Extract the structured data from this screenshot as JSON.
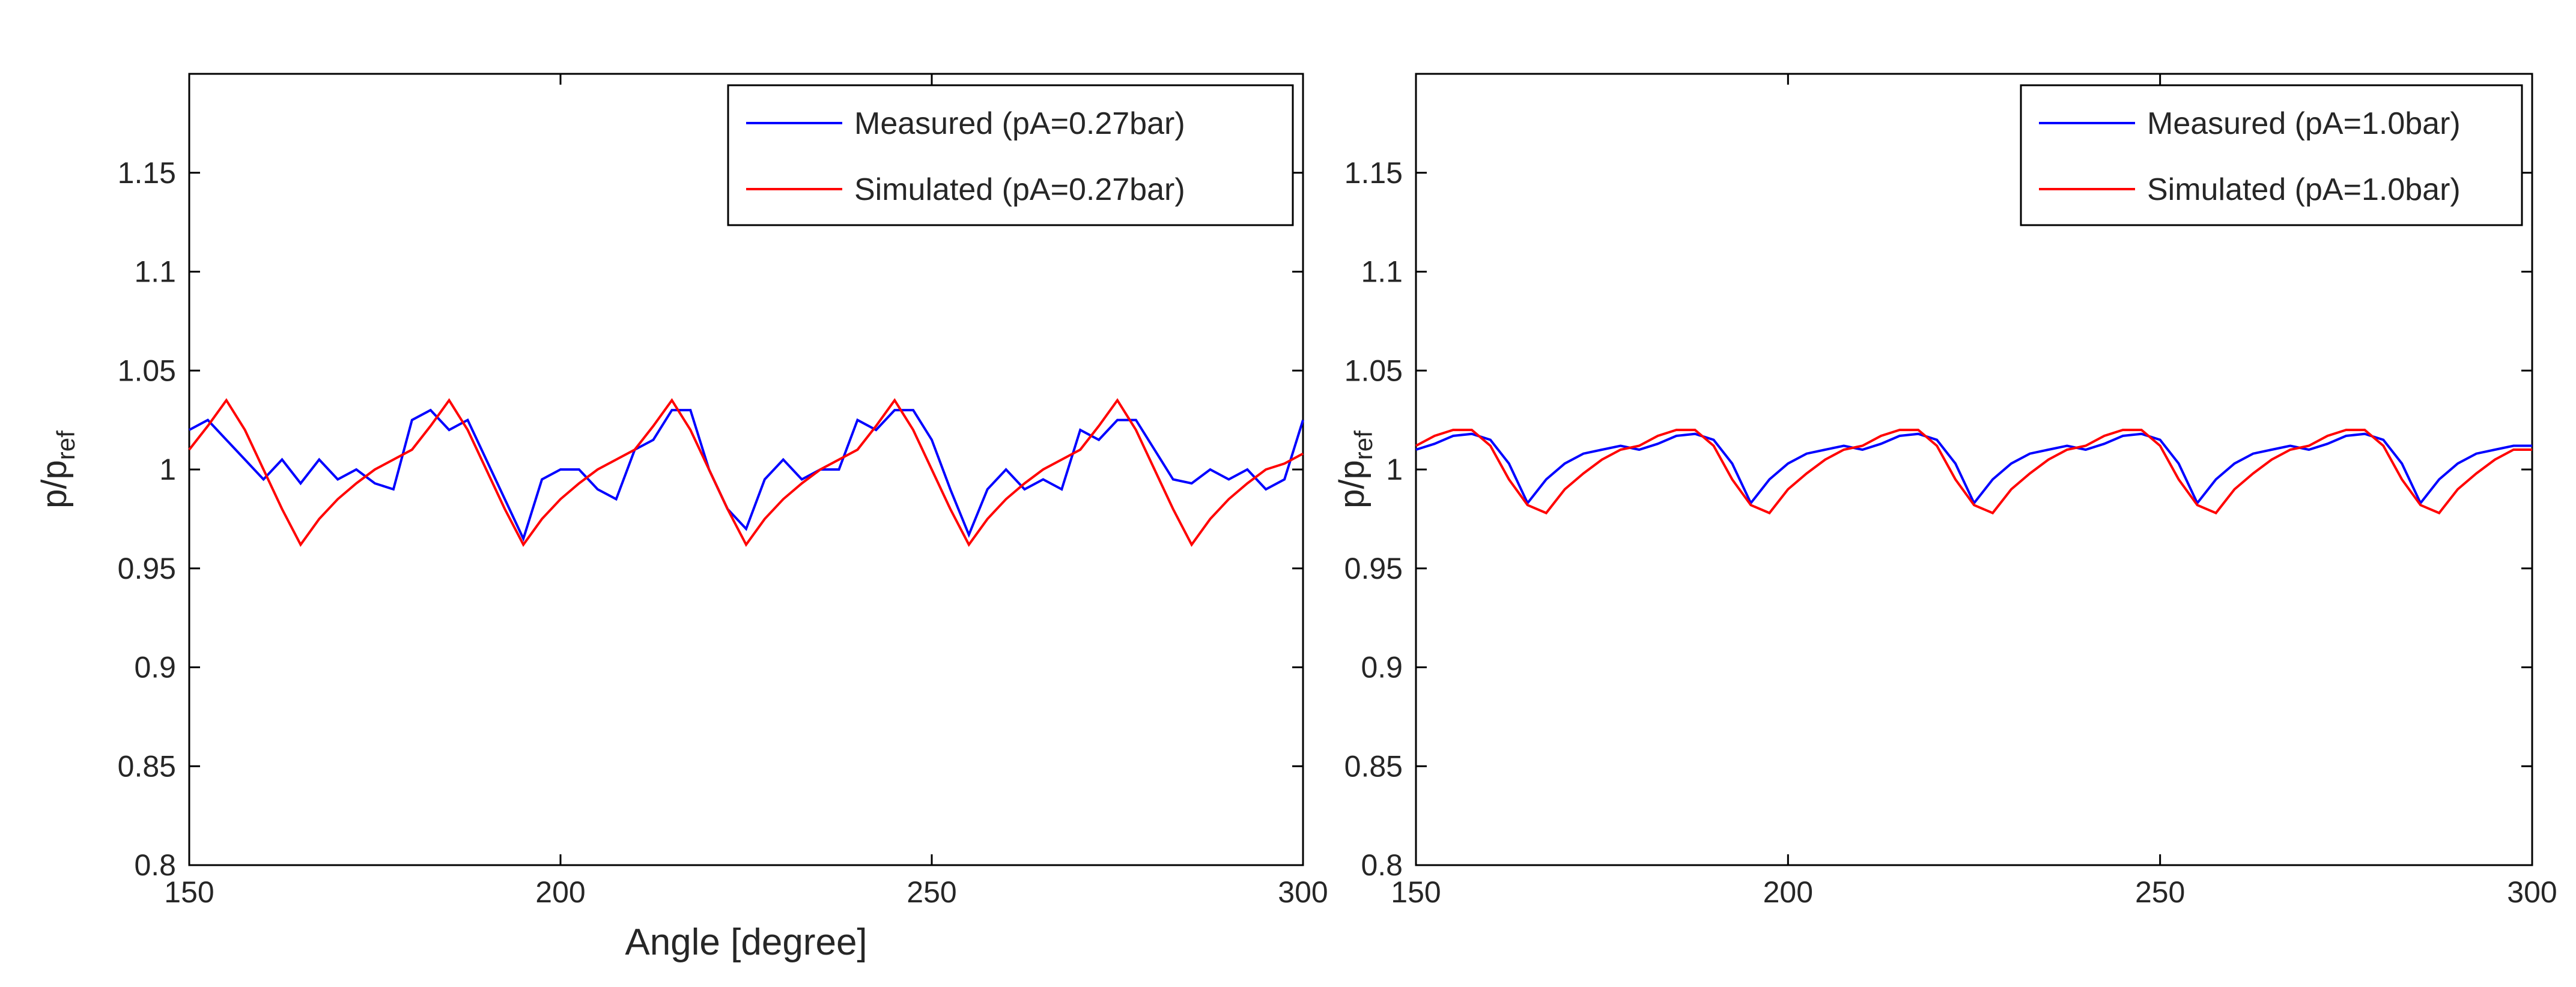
{
  "chart_data": [
    {
      "type": "line",
      "title": "",
      "xlabel": "Angle [degree]",
      "ylabel": "p/p",
      "ylabel_sub": "ref",
      "xlim": [
        150,
        300
      ],
      "ylim": [
        0.8,
        1.2
      ],
      "xticks": [
        150,
        200,
        250,
        300
      ],
      "yticks": [
        0.8,
        0.85,
        0.9,
        0.95,
        1,
        1.05,
        1.1,
        1.15
      ],
      "grid": false,
      "legend_position": "top-right",
      "x_step": 2.5,
      "series": [
        {
          "name": "Measured (pA=0.27bar)",
          "color": "#0000ff",
          "values": [
            1.02,
            1.025,
            1.015,
            1.005,
            0.995,
            1.005,
            0.993,
            1.005,
            0.995,
            1.0,
            0.993,
            0.99,
            1.025,
            1.03,
            1.02,
            1.025,
            1.005,
            0.985,
            0.965,
            0.995,
            1.0,
            1.0,
            0.99,
            0.985,
            1.01,
            1.015,
            1.03,
            1.03,
            1.0,
            0.98,
            0.97,
            0.995,
            1.005,
            0.995,
            1.0,
            1.0,
            1.025,
            1.02,
            1.03,
            1.03,
            1.015,
            0.99,
            0.967,
            0.99,
            1.0,
            0.99,
            0.995,
            0.99,
            1.02,
            1.015,
            1.025,
            1.025,
            1.01,
            0.995,
            0.993,
            1.0,
            0.995,
            1.0,
            0.99,
            0.995,
            1.025
          ]
        },
        {
          "name": "Simulated (pA=0.27bar)",
          "color": "#ff0000",
          "values": [
            1.01,
            1.022,
            1.035,
            1.02,
            1.0,
            0.98,
            0.962,
            0.975,
            0.985,
            0.993,
            1.0,
            1.005,
            1.01,
            1.022,
            1.035,
            1.02,
            1.0,
            0.98,
            0.962,
            0.975,
            0.985,
            0.993,
            1.0,
            1.005,
            1.01,
            1.022,
            1.035,
            1.02,
            1.0,
            0.98,
            0.962,
            0.975,
            0.985,
            0.993,
            1.0,
            1.005,
            1.01,
            1.022,
            1.035,
            1.02,
            1.0,
            0.98,
            0.962,
            0.975,
            0.985,
            0.993,
            1.0,
            1.005,
            1.01,
            1.022,
            1.035,
            1.02,
            1.0,
            0.98,
            0.962,
            0.975,
            0.985,
            0.993,
            1.0,
            1.003,
            1.008
          ]
        }
      ]
    },
    {
      "type": "line",
      "title": "",
      "xlabel": "",
      "ylabel": "p/p",
      "ylabel_sub": "ref",
      "xlim": [
        150,
        300
      ],
      "ylim": [
        0.8,
        1.2
      ],
      "xticks": [
        150,
        200,
        250,
        300
      ],
      "yticks": [
        0.8,
        0.85,
        0.9,
        0.95,
        1,
        1.05,
        1.1,
        1.15
      ],
      "grid": false,
      "legend_position": "top-right",
      "x_step": 2.5,
      "series": [
        {
          "name": "Measured (pA=1.0bar)",
          "color": "#0000ff",
          "values": [
            1.01,
            1.013,
            1.017,
            1.018,
            1.015,
            1.003,
            0.983,
            0.995,
            1.003,
            1.008,
            1.01,
            1.012,
            1.01,
            1.013,
            1.017,
            1.018,
            1.015,
            1.003,
            0.983,
            0.995,
            1.003,
            1.008,
            1.01,
            1.012,
            1.01,
            1.013,
            1.017,
            1.018,
            1.015,
            1.003,
            0.983,
            0.995,
            1.003,
            1.008,
            1.01,
            1.012,
            1.01,
            1.013,
            1.017,
            1.018,
            1.015,
            1.003,
            0.983,
            0.995,
            1.003,
            1.008,
            1.01,
            1.012,
            1.01,
            1.013,
            1.017,
            1.018,
            1.015,
            1.003,
            0.983,
            0.995,
            1.003,
            1.008,
            1.01,
            1.012,
            1.012
          ]
        },
        {
          "name": "Simulated (pA=1.0bar)",
          "color": "#ff0000",
          "values": [
            1.012,
            1.017,
            1.02,
            1.02,
            1.012,
            0.995,
            0.982,
            0.978,
            0.99,
            0.998,
            1.005,
            1.01,
            1.012,
            1.017,
            1.02,
            1.02,
            1.012,
            0.995,
            0.982,
            0.978,
            0.99,
            0.998,
            1.005,
            1.01,
            1.012,
            1.017,
            1.02,
            1.02,
            1.012,
            0.995,
            0.982,
            0.978,
            0.99,
            0.998,
            1.005,
            1.01,
            1.012,
            1.017,
            1.02,
            1.02,
            1.012,
            0.995,
            0.982,
            0.978,
            0.99,
            0.998,
            1.005,
            1.01,
            1.012,
            1.017,
            1.02,
            1.02,
            1.012,
            0.995,
            0.982,
            0.978,
            0.99,
            0.998,
            1.005,
            1.01,
            1.01
          ]
        }
      ]
    }
  ]
}
